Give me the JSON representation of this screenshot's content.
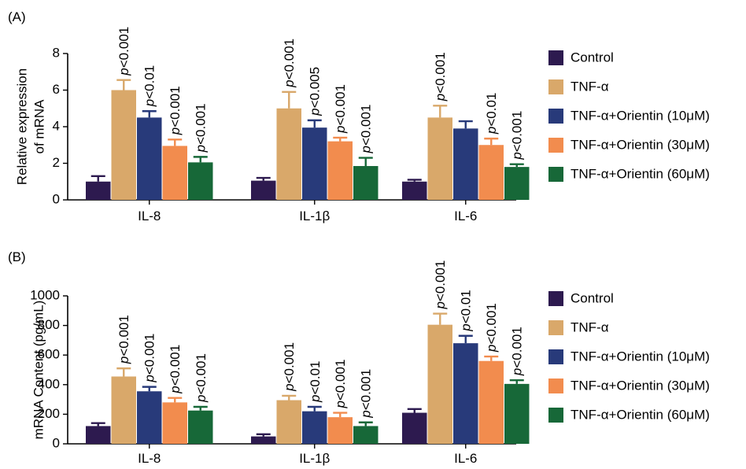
{
  "chart_data": [
    {
      "type": "bar",
      "panel_label": "(A)",
      "ylabel_lines": [
        "Relative expression",
        "of mRNA"
      ],
      "ylim": [
        0,
        8
      ],
      "yticks": [
        0,
        2,
        4,
        6,
        8
      ],
      "categories": [
        "IL-8",
        "IL-1β",
        "IL-6"
      ],
      "legend_position": "right",
      "series": [
        {
          "name": "Control",
          "color": "#2d1a4f",
          "values": [
            1.0,
            1.05,
            1.0
          ],
          "errors": [
            0.3,
            0.15,
            0.1
          ],
          "p_labels": [
            "",
            "",
            ""
          ]
        },
        {
          "name": "TNF-α",
          "color": "#d9a86a",
          "values": [
            6.0,
            5.0,
            4.5
          ],
          "errors": [
            0.55,
            0.9,
            0.65
          ],
          "p_labels": [
            "p<0.001",
            "p<0.001",
            "p<0.001"
          ]
        },
        {
          "name": "TNF-α+Orientin (10μM)",
          "color": "#283a7a",
          "values": [
            4.5,
            3.95,
            3.9
          ],
          "errors": [
            0.35,
            0.4,
            0.4
          ],
          "p_labels": [
            "p<0.01",
            "p<0.005",
            ""
          ]
        },
        {
          "name": "TNF-α+Orientin (30μM)",
          "color": "#f28c4e",
          "values": [
            2.95,
            3.2,
            3.0
          ],
          "errors": [
            0.35,
            0.2,
            0.35
          ],
          "p_labels": [
            "p<0.001",
            "p<0.001",
            "p<0.01"
          ]
        },
        {
          "name": "TNF-α+Orientin (60μM)",
          "color": "#176838",
          "values": [
            2.05,
            1.85,
            1.8
          ],
          "errors": [
            0.3,
            0.45,
            0.15
          ],
          "p_labels": [
            "p<0.001",
            "p<0.001",
            "p<0.001"
          ]
        }
      ]
    },
    {
      "type": "bar",
      "panel_label": "(B)",
      "ylabel_lines": [
        "mRNA Content (pg/mL)"
      ],
      "ylim": [
        0,
        1000
      ],
      "yticks": [
        0,
        200,
        400,
        600,
        800,
        1000
      ],
      "categories": [
        "IL-8",
        "IL-1β",
        "IL-6"
      ],
      "legend_position": "right",
      "series": [
        {
          "name": "Control",
          "color": "#2d1a4f",
          "values": [
            120,
            50,
            210
          ],
          "errors": [
            20,
            15,
            25
          ],
          "p_labels": [
            "",
            "",
            ""
          ]
        },
        {
          "name": "TNF-α",
          "color": "#d9a86a",
          "values": [
            455,
            295,
            805
          ],
          "errors": [
            55,
            30,
            75
          ],
          "p_labels": [
            "p<0.001",
            "p<0.001",
            "p<0.001"
          ]
        },
        {
          "name": "TNF-α+Orientin (10μM)",
          "color": "#283a7a",
          "values": [
            355,
            220,
            680
          ],
          "errors": [
            30,
            30,
            50
          ],
          "p_labels": [
            "p<0.001",
            "p<0.01",
            "p<0.01"
          ]
        },
        {
          "name": "TNF-α+Orientin (30μM)",
          "color": "#f28c4e",
          "values": [
            280,
            180,
            560
          ],
          "errors": [
            30,
            30,
            30
          ],
          "p_labels": [
            "p<0.001",
            "p<0.001",
            "p<0.001"
          ]
        },
        {
          "name": "TNF-α+Orientin (60μM)",
          "color": "#176838",
          "values": [
            225,
            120,
            405
          ],
          "errors": [
            25,
            25,
            25
          ],
          "p_labels": [
            "p<0.001",
            "p<0.001",
            "p<0.001"
          ]
        }
      ]
    }
  ]
}
